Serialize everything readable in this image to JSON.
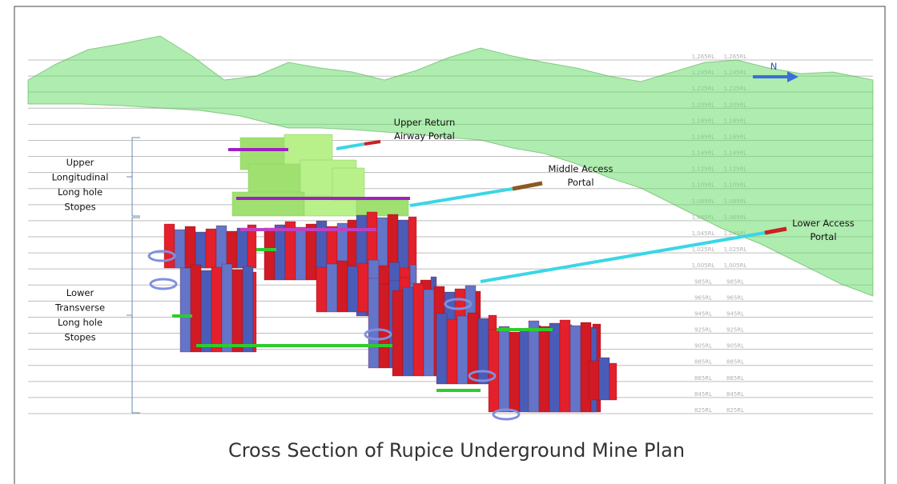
{
  "caption": "Cross Section of Rupice Underground Mine Plan",
  "north": "N",
  "portals": [
    {
      "lines": [
        "Upper Return",
        "Airway Portal"
      ]
    },
    {
      "lines": [
        "Middle Access",
        "Portal"
      ]
    },
    {
      "lines": [
        "Lower Access",
        "Portal"
      ]
    }
  ],
  "stope_zones": [
    {
      "lines": [
        "Upper",
        "Longitudinal",
        "Long hole",
        "Stopes"
      ]
    },
    {
      "lines": [
        "Lower",
        "Transverse",
        "Long hole",
        "Stopes"
      ]
    }
  ],
  "levels": [
    "1,265RL",
    "1,245RL",
    "1,225RL",
    "1,205RL",
    "1,185RL",
    "1,165RL",
    "1,145RL",
    "1,125RL",
    "1,105RL",
    "1,085RL",
    "1,065RL",
    "1,045RL",
    "1,025RL",
    "1,005RL",
    "985RL",
    "965RL",
    "945RL",
    "925RL",
    "905RL",
    "885RL",
    "865RL",
    "845RL",
    "825RL"
  ]
}
